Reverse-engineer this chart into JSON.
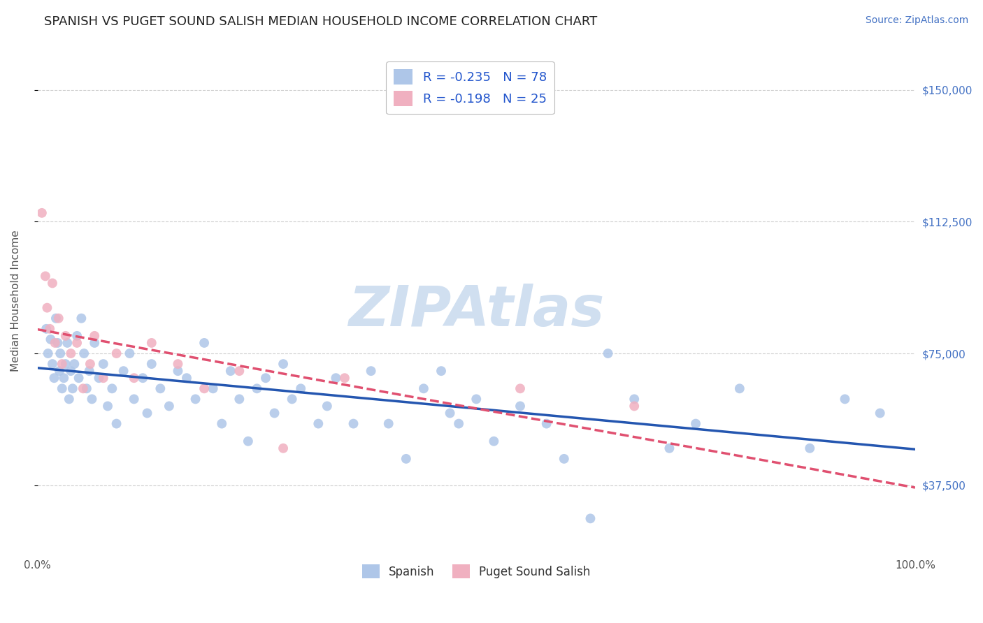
{
  "title": "SPANISH VS PUGET SOUND SALISH MEDIAN HOUSEHOLD INCOME CORRELATION CHART",
  "source_text": "Source: ZipAtlas.com",
  "ylabel": "Median Household Income",
  "xlim": [
    0.0,
    100.0
  ],
  "ylim": [
    18000,
    162000
  ],
  "yticks": [
    37500,
    75000,
    112500,
    150000
  ],
  "ytick_labels": [
    "$37,500",
    "$75,000",
    "$112,500",
    "$150,000"
  ],
  "xtick_labels": [
    "0.0%",
    "100.0%"
  ],
  "background_color": "#ffffff",
  "grid_color": "#d0d0d0",
  "watermark": "ZIPAtlas",
  "watermark_color": "#d0dff0",
  "title_fontsize": 13,
  "label_fontsize": 11,
  "tick_fontsize": 11,
  "right_tick_color": "#4472c4",
  "series": [
    {
      "name": "Spanish",
      "R": -0.235,
      "N": 78,
      "color": "#aec6e8",
      "edge_color": "#7bafd4",
      "trend_color": "#2456b0",
      "trend_style": "solid",
      "x": [
        1.0,
        1.2,
        1.5,
        1.7,
        1.9,
        2.1,
        2.3,
        2.5,
        2.6,
        2.8,
        3.0,
        3.2,
        3.4,
        3.6,
        3.8,
        4.0,
        4.2,
        4.5,
        4.7,
        5.0,
        5.3,
        5.6,
        5.9,
        6.2,
        6.5,
        7.0,
        7.5,
        8.0,
        8.5,
        9.0,
        9.8,
        10.5,
        11.0,
        12.0,
        12.5,
        13.0,
        14.0,
        15.0,
        16.0,
        17.0,
        18.0,
        19.0,
        20.0,
        21.0,
        22.0,
        23.0,
        24.0,
        25.0,
        26.0,
        27.0,
        28.0,
        29.0,
        30.0,
        32.0,
        33.0,
        34.0,
        36.0,
        38.0,
        40.0,
        42.0,
        44.0,
        46.0,
        47.0,
        48.0,
        50.0,
        52.0,
        55.0,
        58.0,
        60.0,
        63.0,
        65.0,
        68.0,
        72.0,
        75.0,
        80.0,
        88.0,
        92.0,
        96.0
      ],
      "y": [
        82000,
        75000,
        79000,
        72000,
        68000,
        85000,
        78000,
        70000,
        75000,
        65000,
        68000,
        72000,
        78000,
        62000,
        70000,
        65000,
        72000,
        80000,
        68000,
        85000,
        75000,
        65000,
        70000,
        62000,
        78000,
        68000,
        72000,
        60000,
        65000,
        55000,
        70000,
        75000,
        62000,
        68000,
        58000,
        72000,
        65000,
        60000,
        70000,
        68000,
        62000,
        78000,
        65000,
        55000,
        70000,
        62000,
        50000,
        65000,
        68000,
        58000,
        72000,
        62000,
        65000,
        55000,
        60000,
        68000,
        55000,
        70000,
        55000,
        45000,
        65000,
        70000,
        58000,
        55000,
        62000,
        50000,
        60000,
        55000,
        45000,
        28000,
        75000,
        62000,
        48000,
        55000,
        65000,
        48000,
        62000,
        58000
      ]
    },
    {
      "name": "Puget Sound Salish",
      "R": -0.198,
      "N": 25,
      "color": "#f0b0c0",
      "edge_color": "#e080a0",
      "trend_color": "#e05070",
      "trend_style": "dashed",
      "x": [
        0.5,
        0.9,
        1.1,
        1.4,
        1.7,
        2.0,
        2.4,
        2.8,
        3.2,
        3.8,
        4.5,
        5.2,
        6.0,
        6.5,
        7.5,
        9.0,
        11.0,
        13.0,
        16.0,
        19.0,
        23.0,
        28.0,
        35.0,
        55.0,
        68.0
      ],
      "y": [
        115000,
        97000,
        88000,
        82000,
        95000,
        78000,
        85000,
        72000,
        80000,
        75000,
        78000,
        65000,
        72000,
        80000,
        68000,
        75000,
        68000,
        78000,
        72000,
        65000,
        70000,
        48000,
        68000,
        65000,
        60000
      ]
    }
  ]
}
